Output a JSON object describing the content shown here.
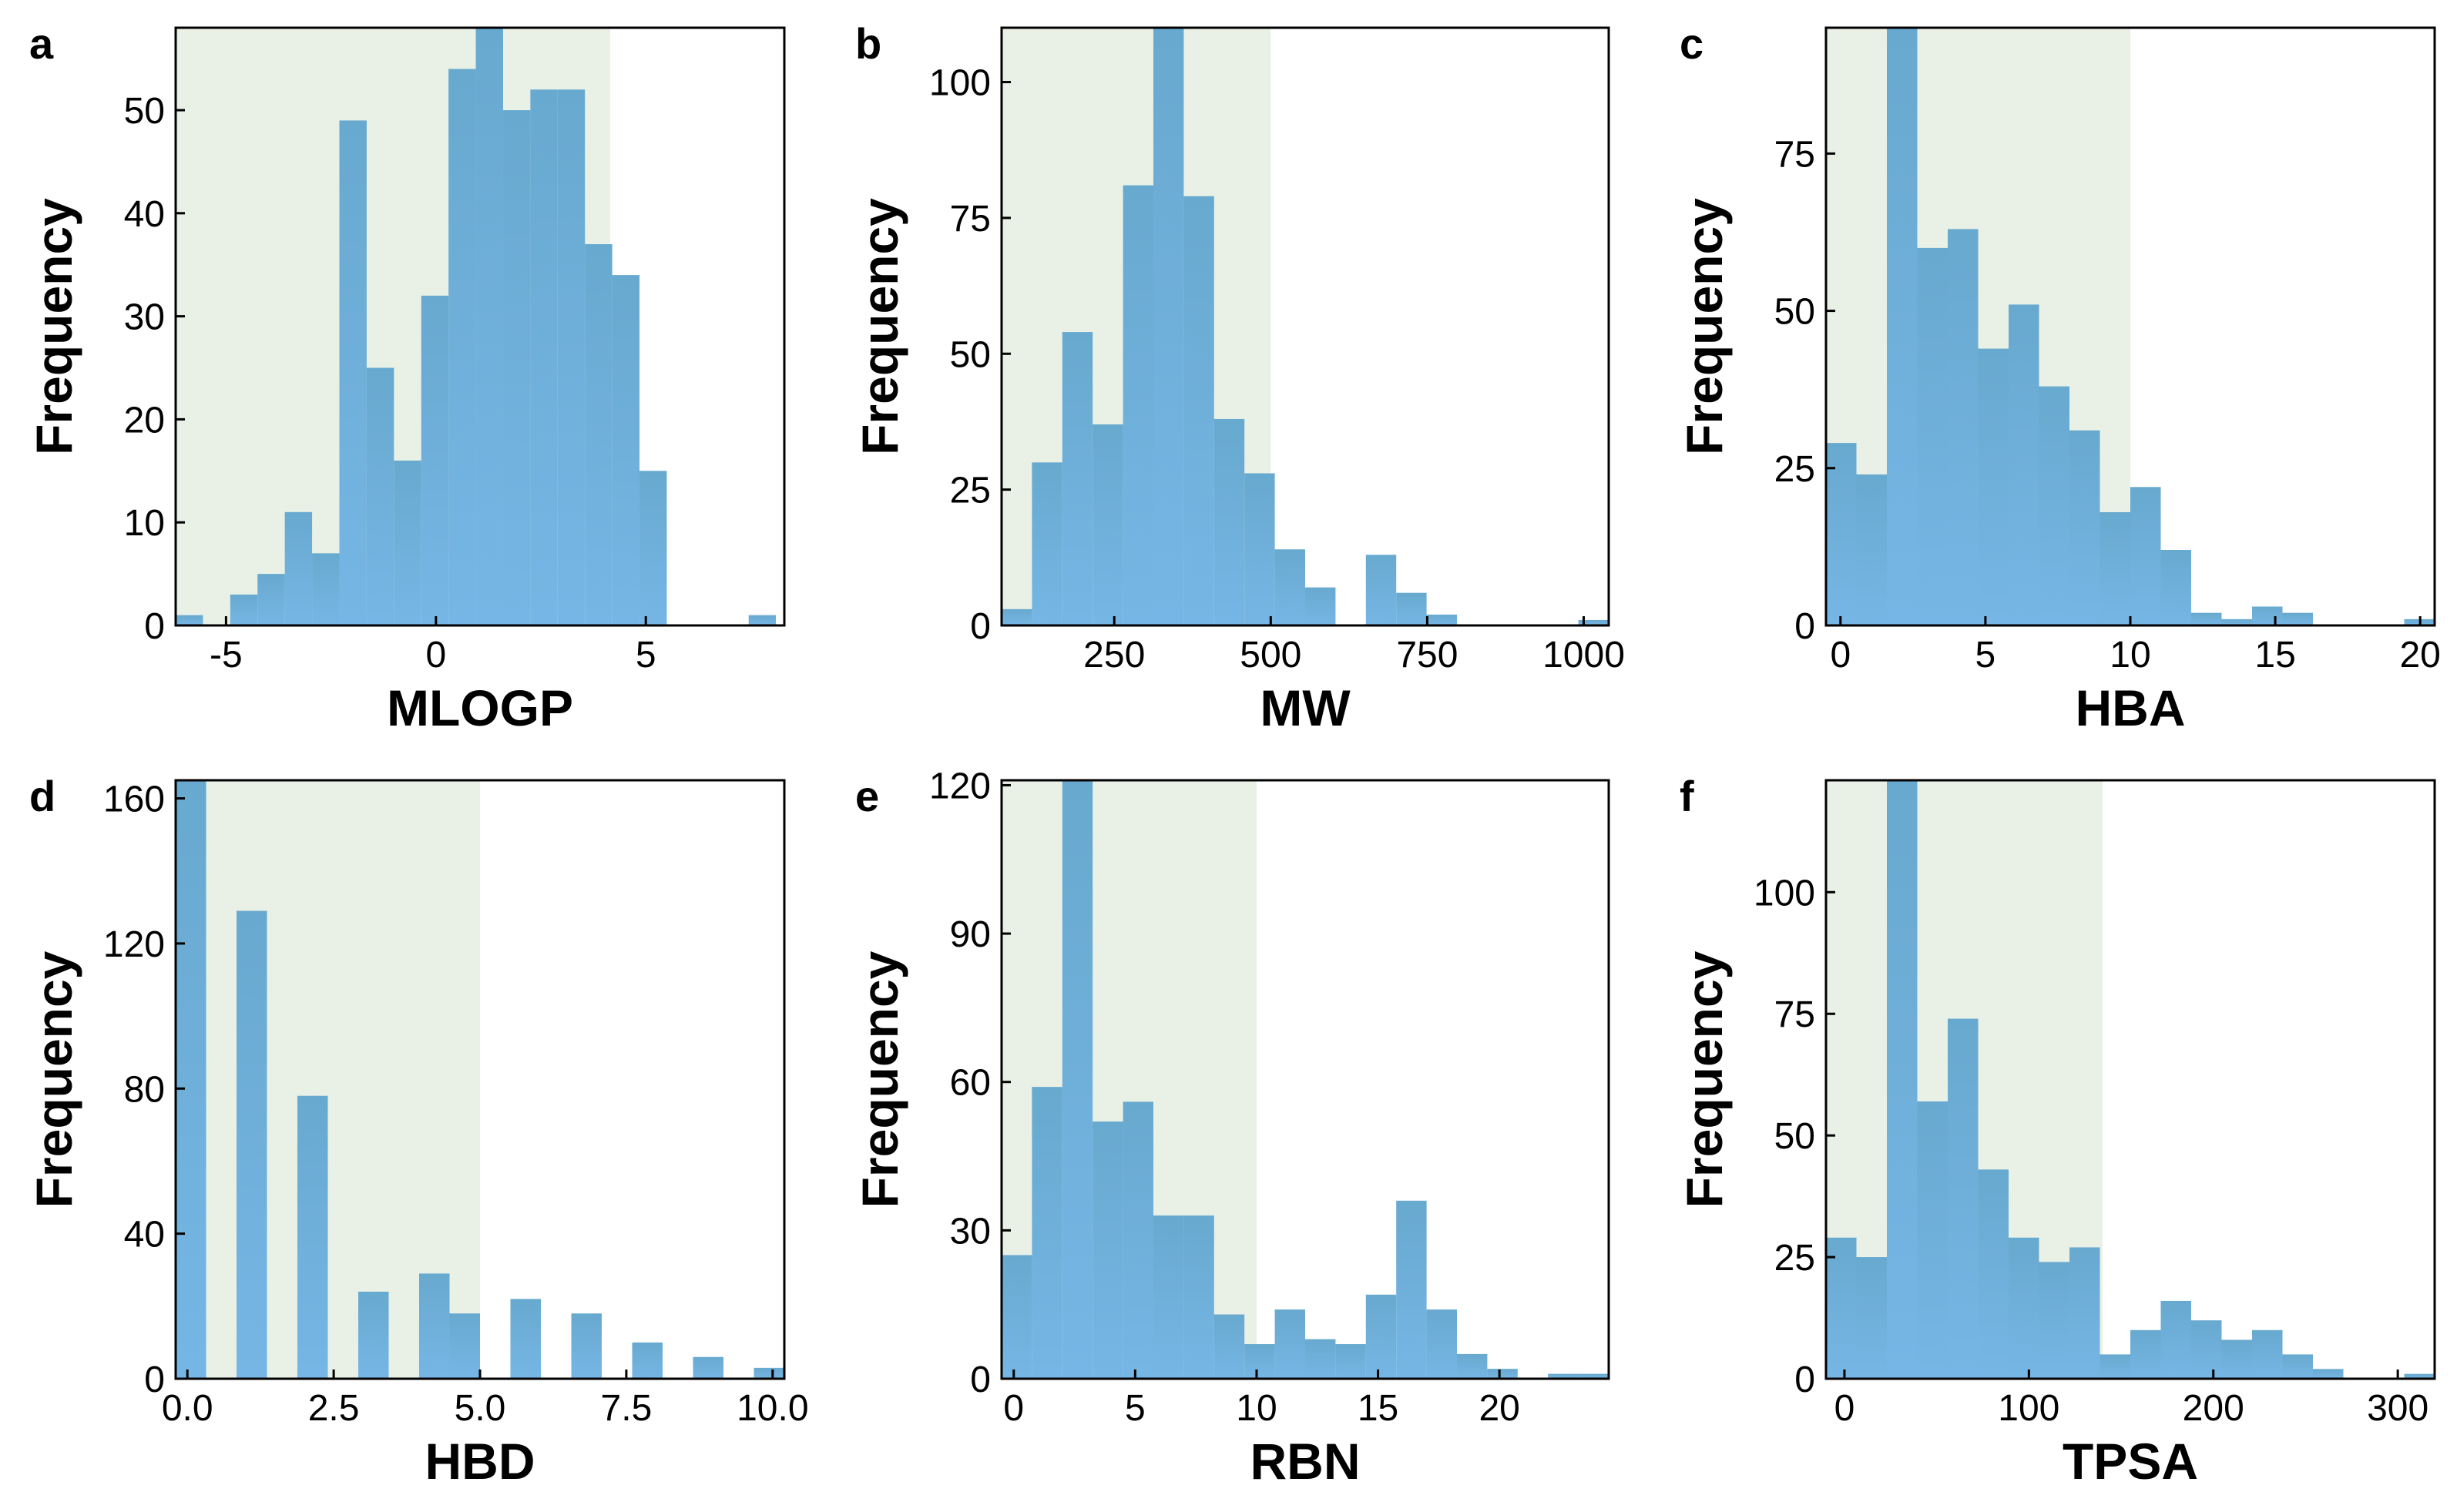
{
  "colors": {
    "range_fill": "#e9f1e6",
    "bar_top": "#68a9cf",
    "bar_bottom": "#76b6e6"
  },
  "chart_data": [
    {
      "panel": "a",
      "type": "bar",
      "xlabel": "MLOGP",
      "ylabel": "Frequency",
      "xlim": [
        -6.2,
        8.3
      ],
      "ylim": [
        0,
        58
      ],
      "xticks": [
        -5,
        0,
        5
      ],
      "xtick_labels": [
        "-5",
        "0",
        "5"
      ],
      "yticks": [
        0,
        10,
        20,
        30,
        40,
        50
      ],
      "ytick_labels": [
        "0",
        "10",
        "20",
        "30",
        "40",
        "50"
      ],
      "shaded_range": [
        -6.2,
        4.15
      ],
      "bin_start": -6.2,
      "bin_width": 0.65,
      "values": [
        1,
        0,
        3,
        5,
        11,
        7,
        49,
        25,
        16,
        32,
        54,
        58,
        50,
        52,
        52,
        37,
        34,
        15,
        0,
        0,
        0,
        1
      ]
    },
    {
      "panel": "b",
      "type": "bar",
      "xlabel": "MW",
      "ylabel": "Frequency",
      "xlim": [
        70,
        1040
      ],
      "ylim": [
        0,
        110
      ],
      "xticks": [
        250,
        500,
        750,
        1000
      ],
      "xtick_labels": [
        "250",
        "500",
        "750",
        "1000"
      ],
      "yticks": [
        0,
        25,
        50,
        75,
        100
      ],
      "ytick_labels": [
        "0",
        "25",
        "50",
        "75",
        "100"
      ],
      "shaded_range": [
        70,
        500
      ],
      "bin_start": 70,
      "bin_width": 48.5,
      "values": [
        3,
        30,
        54,
        37,
        81,
        110,
        79,
        38,
        28,
        14,
        7,
        0,
        13,
        6,
        2,
        0,
        0,
        0,
        0,
        1
      ]
    },
    {
      "panel": "c",
      "type": "bar",
      "xlabel": "HBA",
      "ylabel": "Frequency",
      "xlim": [
        -0.5,
        20.5
      ],
      "ylim": [
        0,
        95
      ],
      "xticks": [
        0,
        5,
        10,
        15,
        20
      ],
      "xtick_labels": [
        "0",
        "5",
        "10",
        "15",
        "20"
      ],
      "shaded_range": [
        -0.5,
        10
      ],
      "yticks": [
        0,
        25,
        50,
        75
      ],
      "ytick_labels": [
        "0",
        "25",
        "50",
        "75"
      ],
      "bin_start": -0.5,
      "bin_width": 1.05,
      "values": [
        29,
        24,
        95,
        60,
        63,
        44,
        51,
        38,
        31,
        18,
        22,
        12,
        2,
        1,
        3,
        2,
        0,
        0,
        0,
        1
      ]
    },
    {
      "panel": "d",
      "type": "bar",
      "xlabel": "HBD",
      "ylabel": "Frequency",
      "xlim": [
        -0.2,
        10.2
      ],
      "ylim": [
        0,
        165
      ],
      "xticks": [
        0,
        2.5,
        5,
        7.5,
        10
      ],
      "xtick_labels": [
        "0.0",
        "2.5",
        "5.0",
        "7.5",
        "10.0"
      ],
      "yticks": [
        0,
        40,
        80,
        120,
        160
      ],
      "ytick_labels": [
        "0",
        "40",
        "80",
        "120",
        "160"
      ],
      "shaded_range": [
        -0.2,
        5
      ],
      "bin_start": -0.2,
      "bin_width": 0.52,
      "values": [
        165,
        0,
        129,
        0,
        78,
        0,
        24,
        0,
        29,
        18,
        0,
        22,
        0,
        18,
        0,
        10,
        0,
        6,
        0,
        3
      ]
    },
    {
      "panel": "e",
      "type": "bar",
      "xlabel": "RBN",
      "ylabel": "Frequency",
      "xlim": [
        -0.5,
        24.5
      ],
      "ylim": [
        0,
        121
      ],
      "xticks": [
        0,
        5,
        10,
        15,
        20
      ],
      "xtick_labels": [
        "0",
        "5",
        "10",
        "15",
        "20"
      ],
      "yticks": [
        0,
        30,
        60,
        90,
        120
      ],
      "ytick_labels": [
        "0",
        "30",
        "60",
        "90",
        "120"
      ],
      "shaded_range": [
        -0.5,
        10
      ],
      "bin_start": -0.5,
      "bin_width": 1.25,
      "values": [
        25,
        59,
        121,
        52,
        56,
        33,
        33,
        13,
        7,
        14,
        8,
        7,
        17,
        36,
        14,
        5,
        2,
        0,
        1,
        1
      ]
    },
    {
      "panel": "f",
      "type": "bar",
      "xlabel": "TPSA",
      "ylabel": "Frequency",
      "xlim": [
        -10,
        320
      ],
      "ylim": [
        0,
        123
      ],
      "xticks": [
        0,
        100,
        200,
        300
      ],
      "xtick_labels": [
        "0",
        "100",
        "200",
        "300"
      ],
      "yticks": [
        0,
        25,
        50,
        75,
        100
      ],
      "ytick_labels": [
        "0",
        "25",
        "50",
        "75",
        "100"
      ],
      "shaded_range": [
        -10,
        140
      ],
      "bin_start": -10,
      "bin_width": 16.5,
      "values": [
        29,
        25,
        123,
        57,
        74,
        43,
        29,
        24,
        27,
        5,
        10,
        16,
        12,
        8,
        10,
        5,
        2,
        0,
        0,
        1
      ]
    }
  ]
}
